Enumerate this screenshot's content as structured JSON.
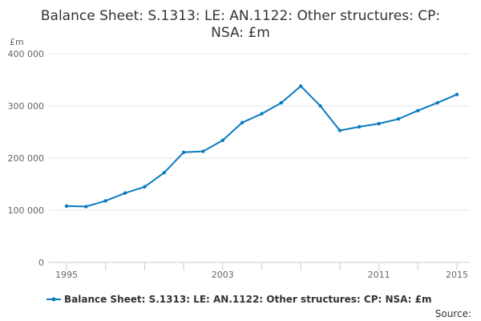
{
  "chart_data": {
    "type": "line",
    "title_lines": [
      "Balance Sheet: S.1313: LE: AN.1122: Other structures: CP:",
      "NSA: £m"
    ],
    "y_unit": "£m",
    "ylim": [
      0,
      400000
    ],
    "y_ticks": [
      "0",
      "100 000",
      "200 000",
      "300 000",
      "400 000"
    ],
    "y_tick_values": [
      0,
      100000,
      200000,
      300000,
      400000
    ],
    "x_ticks": [
      "1995",
      "2003",
      "2011",
      "2015"
    ],
    "x_tick_values": [
      1995,
      2003,
      2011,
      2015
    ],
    "xlim": [
      1995,
      2015
    ],
    "grid": true,
    "legend_position": "bottom",
    "series": [
      {
        "name": "Balance Sheet: S.1313: LE: AN.1122: Other structures: CP: NSA: £m",
        "color": "#0b7bc1",
        "x": [
          1995,
          1996,
          1997,
          1998,
          1999,
          2000,
          2001,
          2002,
          2003,
          2004,
          2005,
          2006,
          2007,
          2008,
          2009,
          2010,
          2011,
          2012,
          2013,
          2014,
          2015
        ],
        "values": [
          108000,
          107000,
          118000,
          133000,
          145000,
          172000,
          211000,
          213000,
          234000,
          268000,
          285000,
          306000,
          338000,
          300000,
          253000,
          260000,
          266000,
          275000,
          291000,
          306000,
          322000
        ]
      }
    ]
  },
  "source_label": "Source:"
}
